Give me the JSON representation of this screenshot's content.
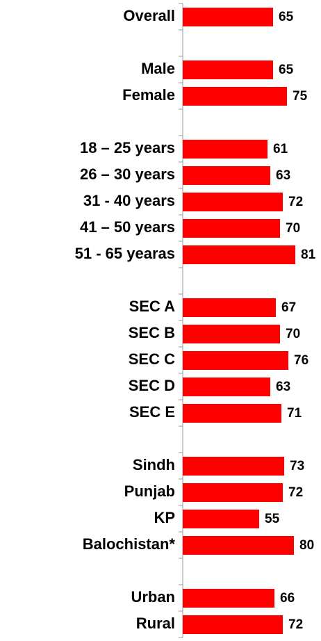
{
  "chart_data": {
    "type": "bar",
    "orientation": "horizontal",
    "categories": [
      "Overall",
      null,
      "Male",
      "Female",
      null,
      "18 – 25 years",
      "26 – 30 years",
      "31 - 40 years",
      "41 – 50 years",
      "51 - 65 yearas",
      null,
      "SEC A",
      "SEC B",
      "SEC C",
      "SEC D",
      "SEC E",
      null,
      "Sindh",
      "Punjab",
      "KP",
      "Balochistan*",
      null,
      "Urban",
      "Rural"
    ],
    "values": [
      65,
      null,
      65,
      75,
      null,
      61,
      63,
      72,
      70,
      81,
      null,
      67,
      70,
      76,
      63,
      71,
      null,
      73,
      72,
      55,
      80,
      null,
      66,
      72
    ],
    "color": "#ff0000",
    "xlim": [
      0,
      100
    ]
  }
}
